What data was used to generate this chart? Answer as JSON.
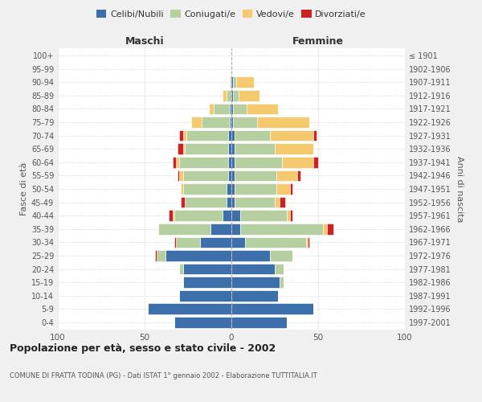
{
  "age_groups": [
    "0-4",
    "5-9",
    "10-14",
    "15-19",
    "20-24",
    "25-29",
    "30-34",
    "35-39",
    "40-44",
    "45-49",
    "50-54",
    "55-59",
    "60-64",
    "65-69",
    "70-74",
    "75-79",
    "80-84",
    "85-89",
    "90-94",
    "95-99",
    "100+"
  ],
  "birth_years": [
    "1997-2001",
    "1992-1996",
    "1987-1991",
    "1982-1986",
    "1977-1981",
    "1972-1976",
    "1967-1971",
    "1962-1966",
    "1957-1961",
    "1952-1956",
    "1947-1951",
    "1942-1946",
    "1937-1941",
    "1932-1936",
    "1927-1931",
    "1922-1926",
    "1917-1921",
    "1912-1916",
    "1907-1911",
    "1902-1906",
    "≤ 1901"
  ],
  "maschi": {
    "celibi": [
      33,
      48,
      30,
      28,
      28,
      38,
      18,
      12,
      5,
      3,
      3,
      2,
      2,
      2,
      2,
      1,
      1,
      0,
      0,
      0,
      0
    ],
    "coniugati": [
      0,
      0,
      0,
      0,
      2,
      5,
      14,
      30,
      28,
      24,
      25,
      26,
      28,
      25,
      24,
      16,
      9,
      3,
      1,
      0,
      0
    ],
    "vedovi": [
      0,
      0,
      0,
      0,
      0,
      0,
      0,
      0,
      1,
      0,
      1,
      2,
      2,
      1,
      2,
      6,
      3,
      2,
      0,
      0,
      0
    ],
    "divorziati": [
      0,
      0,
      0,
      0,
      0,
      1,
      1,
      0,
      2,
      2,
      0,
      1,
      2,
      3,
      2,
      0,
      0,
      0,
      0,
      0,
      0
    ]
  },
  "femmine": {
    "nubili": [
      32,
      47,
      27,
      28,
      25,
      22,
      8,
      5,
      5,
      2,
      2,
      2,
      2,
      2,
      2,
      1,
      1,
      1,
      1,
      0,
      0
    ],
    "coniugate": [
      0,
      0,
      0,
      2,
      5,
      13,
      35,
      48,
      27,
      23,
      24,
      24,
      27,
      23,
      20,
      14,
      8,
      3,
      2,
      0,
      0
    ],
    "vedove": [
      0,
      0,
      0,
      0,
      0,
      0,
      1,
      2,
      2,
      3,
      8,
      12,
      18,
      22,
      25,
      30,
      18,
      12,
      10,
      0,
      0
    ],
    "divorziate": [
      0,
      0,
      0,
      0,
      0,
      0,
      1,
      4,
      1,
      3,
      1,
      2,
      3,
      0,
      2,
      0,
      0,
      0,
      0,
      0,
      0
    ]
  },
  "colors": {
    "celibi": "#3d6faa",
    "coniugati": "#b5cfa0",
    "vedovi": "#f5c96d",
    "divorziati": "#cc2222"
  },
  "xlim": 100,
  "title": "Popolazione per età, sesso e stato civile - 2002",
  "subtitle": "COMUNE DI FRATTA TODINA (PG) - Dati ISTAT 1° gennaio 2002 - Elaborazione TUTTITALIA.IT",
  "ylabel_left": "Fasce di età",
  "ylabel_right": "Anni di nascita",
  "xlabel_left": "Maschi",
  "xlabel_right": "Femmine",
  "bg_color": "#f0f0f0",
  "plot_bg_color": "#ffffff",
  "bar_edge_color": "white"
}
